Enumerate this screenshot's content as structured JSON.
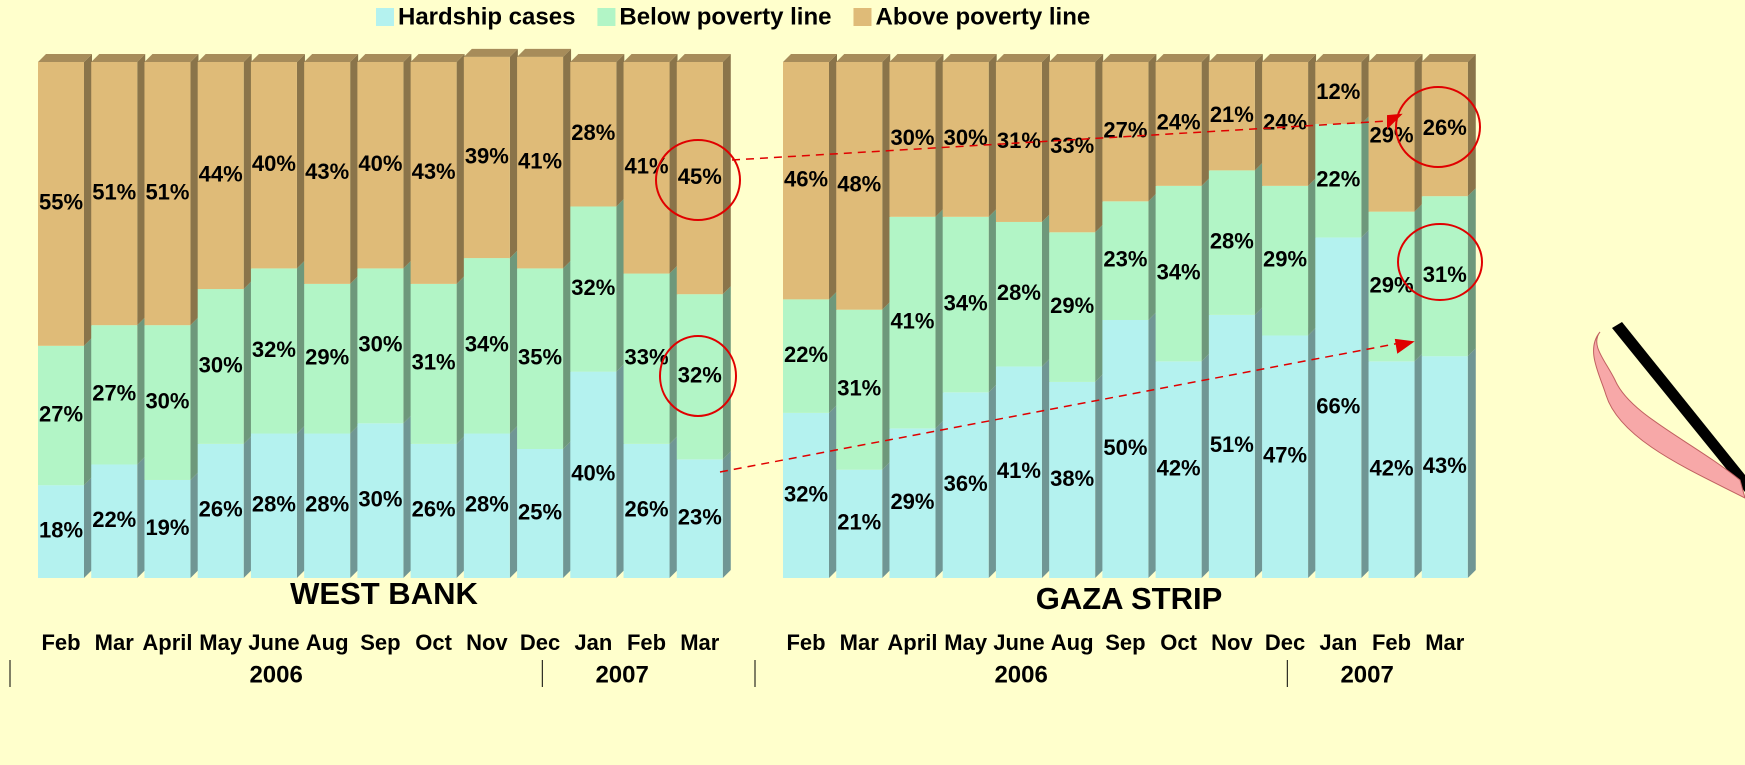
{
  "chart_data": [
    {
      "type": "bar",
      "stacked": true,
      "title": "WEST BANK",
      "categories": [
        "Feb",
        "Mar",
        "April",
        "May",
        "June",
        "Aug",
        "Sep",
        "Oct",
        "Nov",
        "Dec",
        "Jan",
        "Feb",
        "Mar"
      ],
      "years": [
        "2006",
        "2006",
        "2006",
        "2006",
        "2006",
        "2006",
        "2006",
        "2006",
        "2006",
        "2006",
        "2007",
        "2007",
        "2007"
      ],
      "ylim": [
        0,
        100
      ],
      "series": [
        {
          "name": "Hardship cases",
          "color": "#b4f2ef",
          "values": [
            18,
            22,
            19,
            26,
            28,
            28,
            30,
            26,
            28,
            25,
            40,
            26,
            23
          ],
          "value_labels": [
            "18%",
            "22%",
            "19%",
            "26%",
            "28%",
            "28%",
            "30%",
            "26%",
            "28%",
            "25%",
            "40%",
            "26%",
            "23%"
          ]
        },
        {
          "name": "Below poverty line",
          "color": "#b2f5c6",
          "values": [
            27,
            27,
            30,
            30,
            32,
            29,
            30,
            31,
            34,
            35,
            32,
            33,
            32
          ],
          "value_labels": [
            "27%",
            "27%",
            "30%",
            "30%",
            "32%",
            "29%",
            "30%",
            "31%",
            "34%",
            "35%",
            "32%",
            "33%",
            "32%"
          ]
        },
        {
          "name": "Above poverty line",
          "color": "#dfbb78",
          "values": [
            55,
            51,
            51,
            44,
            40,
            43,
            40,
            43,
            39,
            41,
            28,
            41,
            45
          ],
          "value_labels": [
            "55%",
            "51%",
            "51%",
            "44%",
            "40%",
            "43%",
            "40%",
            "43%",
            "39%",
            "41%",
            "28%",
            "41%",
            "45%"
          ]
        }
      ]
    },
    {
      "type": "bar",
      "stacked": true,
      "title": "GAZA STRIP",
      "categories": [
        "Feb",
        "Mar",
        "April",
        "May",
        "June",
        "Aug",
        "Sep",
        "Oct",
        "Nov",
        "Dec",
        "Jan",
        "Feb",
        "Mar"
      ],
      "years": [
        "2006",
        "2006",
        "2006",
        "2006",
        "2006",
        "2006",
        "2006",
        "2006",
        "2006",
        "2006",
        "2007",
        "2007",
        "2007"
      ],
      "ylim": [
        0,
        100
      ],
      "series": [
        {
          "name": "Hardship cases",
          "color": "#b4f2ef",
          "values": [
            32,
            21,
            29,
            36,
            41,
            38,
            50,
            42,
            51,
            47,
            66,
            42,
            43
          ],
          "value_labels": [
            "32%",
            "21%",
            "29%",
            "36%",
            "41%",
            "38%",
            "50%",
            "42%",
            "51%",
            "47%",
            "66%",
            "42%",
            "43%"
          ]
        },
        {
          "name": "Below poverty line",
          "color": "#b2f5c6",
          "values": [
            22,
            31,
            41,
            34,
            28,
            29,
            23,
            34,
            28,
            29,
            22,
            29,
            31
          ],
          "value_labels": [
            "22%",
            "31%",
            "41%",
            "34%",
            "28%",
            "29%",
            "23%",
            "34%",
            "28%",
            "29%",
            "22%",
            "29%",
            "31%"
          ]
        },
        {
          "name": "Above poverty line",
          "color": "#dfbb78",
          "values": [
            46,
            48,
            30,
            30,
            31,
            33,
            27,
            24,
            21,
            24,
            12,
            29,
            26
          ],
          "value_labels": [
            "46%",
            "48%",
            "30%",
            "30%",
            "31%",
            "33%",
            "27%",
            "24%",
            "21%",
            "24%",
            "12%",
            "29%",
            "26%"
          ]
        }
      ]
    }
  ]
}
